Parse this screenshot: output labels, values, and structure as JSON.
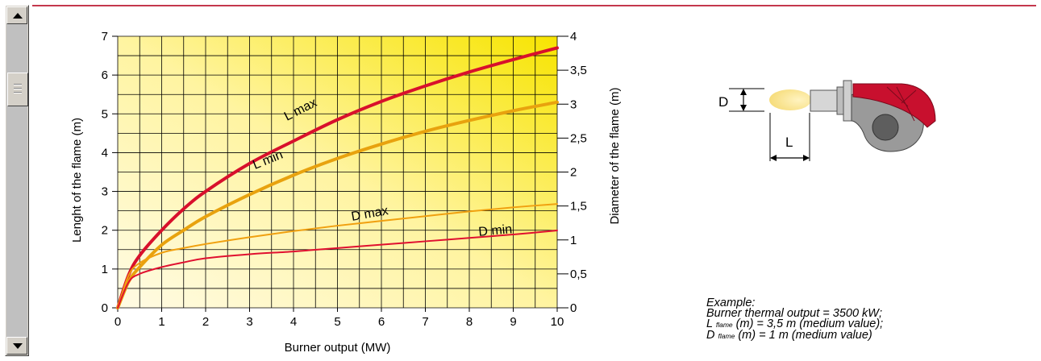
{
  "chart_data": {
    "type": "line",
    "xlabel": "Burner output (MW)",
    "ylabel": "Lenght of the flame (m)",
    "y2label": "Diameter of the flame (m)",
    "xlim": [
      0,
      10
    ],
    "ylim": [
      0,
      7
    ],
    "y2lim": [
      0,
      4
    ],
    "x_ticks": [
      "0",
      "1",
      "2",
      "3",
      "4",
      "5",
      "6",
      "7",
      "8",
      "9",
      "10"
    ],
    "y_ticks": [
      "0",
      "1",
      "2",
      "3",
      "4",
      "5",
      "6",
      "7"
    ],
    "y2_ticks": [
      "0",
      "0,5",
      "1",
      "1,5",
      "2",
      "2,5",
      "3",
      "3,5",
      "4"
    ],
    "grid": true,
    "background": "yellow gradient",
    "series": [
      {
        "name": "L max",
        "axis": "left",
        "color": "#d8102c",
        "width": 4,
        "x": [
          0,
          0.25,
          0.5,
          1,
          1.5,
          2,
          3,
          4,
          5,
          6,
          7,
          8,
          9,
          10
        ],
        "y": [
          0,
          0.85,
          1.35,
          2.0,
          2.55,
          3.0,
          3.72,
          4.3,
          4.85,
          5.32,
          5.72,
          6.08,
          6.4,
          6.7
        ]
      },
      {
        "name": "L min",
        "axis": "left",
        "color": "#e8a20e",
        "width": 4,
        "x": [
          0,
          0.25,
          0.5,
          1,
          1.5,
          2,
          3,
          4,
          5,
          6,
          7,
          8,
          9,
          10
        ],
        "y": [
          0,
          0.68,
          1.05,
          1.62,
          2.0,
          2.35,
          2.92,
          3.42,
          3.85,
          4.22,
          4.55,
          4.83,
          5.08,
          5.3
        ]
      },
      {
        "name": "D max",
        "axis": "right",
        "color": "#f0a010",
        "width": 2,
        "x": [
          0,
          0.25,
          0.5,
          1,
          1.5,
          2,
          3,
          4,
          5,
          6,
          7,
          8,
          9,
          10
        ],
        "y": [
          0,
          0.48,
          0.66,
          0.81,
          0.88,
          0.94,
          1.04,
          1.13,
          1.21,
          1.28,
          1.35,
          1.42,
          1.48,
          1.53
        ]
      },
      {
        "name": "D min",
        "axis": "right",
        "color": "#e01030",
        "width": 2,
        "x": [
          0,
          0.25,
          0.5,
          1,
          1.5,
          2,
          3,
          4,
          5,
          6,
          7,
          8,
          9,
          10
        ],
        "y": [
          0,
          0.38,
          0.5,
          0.6,
          0.67,
          0.73,
          0.79,
          0.83,
          0.88,
          0.93,
          0.98,
          1.03,
          1.08,
          1.14
        ]
      }
    ]
  },
  "diagram": {
    "label_d": "D",
    "label_l": "L"
  },
  "example": {
    "title": "Example:",
    "line1": "Burner thermal output = 3500 kW;",
    "line2": {
      "pre": "L",
      "sub": "flame",
      "post": "(m) = 3,5 m (medium value);"
    },
    "line3": {
      "pre": "D",
      "sub": "flame",
      "post": "(m) = 1 m (medium value)"
    }
  }
}
